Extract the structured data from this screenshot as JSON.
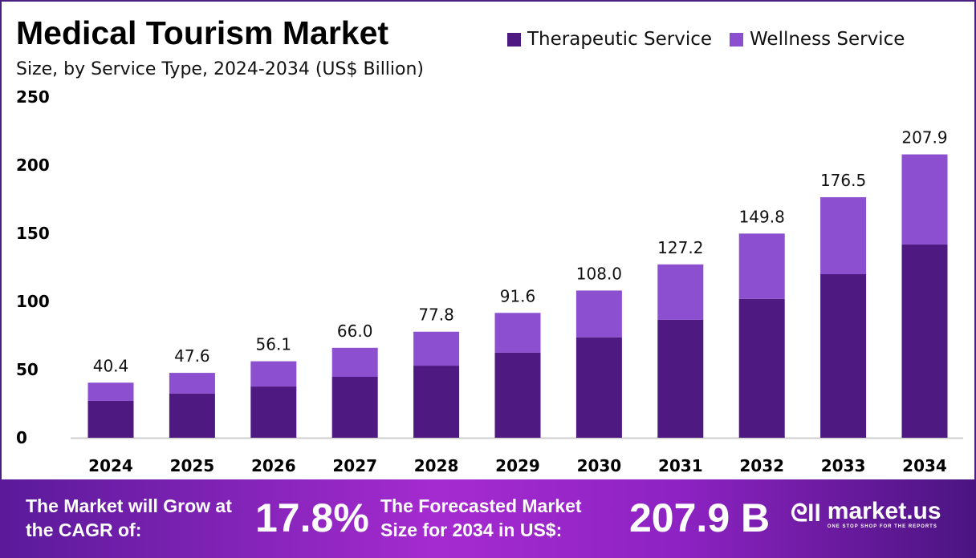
{
  "chart_data": {
    "type": "stacked-bar",
    "title": "Medical Tourism Market",
    "subtitle": "Size, by Service Type, 2024-2034 (US$ Billion)",
    "categories": [
      "2024",
      "2025",
      "2026",
      "2027",
      "2028",
      "2029",
      "2030",
      "2031",
      "2032",
      "2033",
      "2034"
    ],
    "series": [
      {
        "name": "Therapeutic Service",
        "color": "#4e1a82",
        "values": [
          27.1,
          32.4,
          37.6,
          44.7,
          52.9,
          62.4,
          73.7,
          86.5,
          101.9,
          120.0,
          141.8
        ]
      },
      {
        "name": "Wellness Service",
        "color": "#8b4fcf",
        "values": [
          13.3,
          15.2,
          18.5,
          21.3,
          24.9,
          29.2,
          34.3,
          40.7,
          47.9,
          56.5,
          66.1
        ]
      }
    ],
    "totals": [
      "40.4",
      "47.6",
      "56.1",
      "66.0",
      "77.8",
      "91.6",
      "108.0",
      "127.2",
      "149.8",
      "176.5",
      "207.9"
    ],
    "yticks": [
      "0",
      "50",
      "100",
      "150",
      "200",
      "250"
    ],
    "ylim": [
      0,
      250
    ],
    "grid": false,
    "legend": "top-right"
  },
  "footer": {
    "cagr_label": "The Market will Grow at the CAGR of:",
    "cagr_value": "17.8%",
    "forecast_label": "The Forecasted Market Size for 2034 in US$:",
    "forecast_value": "207.9 B",
    "logo_text": "market.us",
    "logo_tagline": "ONE STOP SHOP FOR THE REPORTS"
  }
}
